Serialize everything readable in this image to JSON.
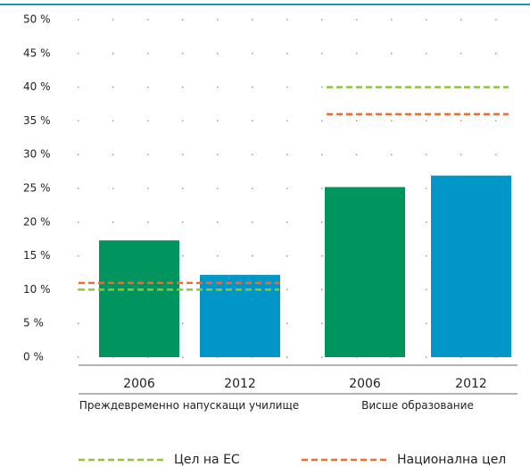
{
  "chart_data": {
    "type": "grouped-bar",
    "groups": [
      {
        "name": "Преждевременно напускащи училище",
        "bars": [
          {
            "label": "2006",
            "value": 17.3,
            "color": "#00955f"
          },
          {
            "label": "2012",
            "value": 12.2,
            "color": "#0096c6"
          }
        ]
      },
      {
        "name": "Висше образование",
        "bars": [
          {
            "label": "2006",
            "value": 25.2,
            "color": "#00955f"
          },
          {
            "label": "2012",
            "value": 26.9,
            "color": "#0096c6"
          }
        ]
      }
    ],
    "targets": [
      {
        "name": "Цел на ЕС",
        "color": "#8cc63f",
        "values": [
          10,
          40
        ]
      },
      {
        "name": "Национална цел",
        "color": "#f26a30",
        "values": [
          11,
          36
        ]
      }
    ],
    "ylim": [
      0,
      50
    ],
    "yticks": [
      {
        "value": 0,
        "label": "0 %"
      },
      {
        "value": 5,
        "label": "5 %"
      },
      {
        "value": 10,
        "label": "10 %"
      },
      {
        "value": 15,
        "label": "15 %"
      },
      {
        "value": 20,
        "label": "20 %"
      },
      {
        "value": 25,
        "label": "25 %"
      },
      {
        "value": 30,
        "label": "30 %"
      },
      {
        "value": 35,
        "label": "35 %"
      },
      {
        "value": 40,
        "label": "40 %"
      },
      {
        "value": 45,
        "label": "45 %"
      },
      {
        "value": 50,
        "label": "50 %"
      }
    ],
    "grid": true
  }
}
